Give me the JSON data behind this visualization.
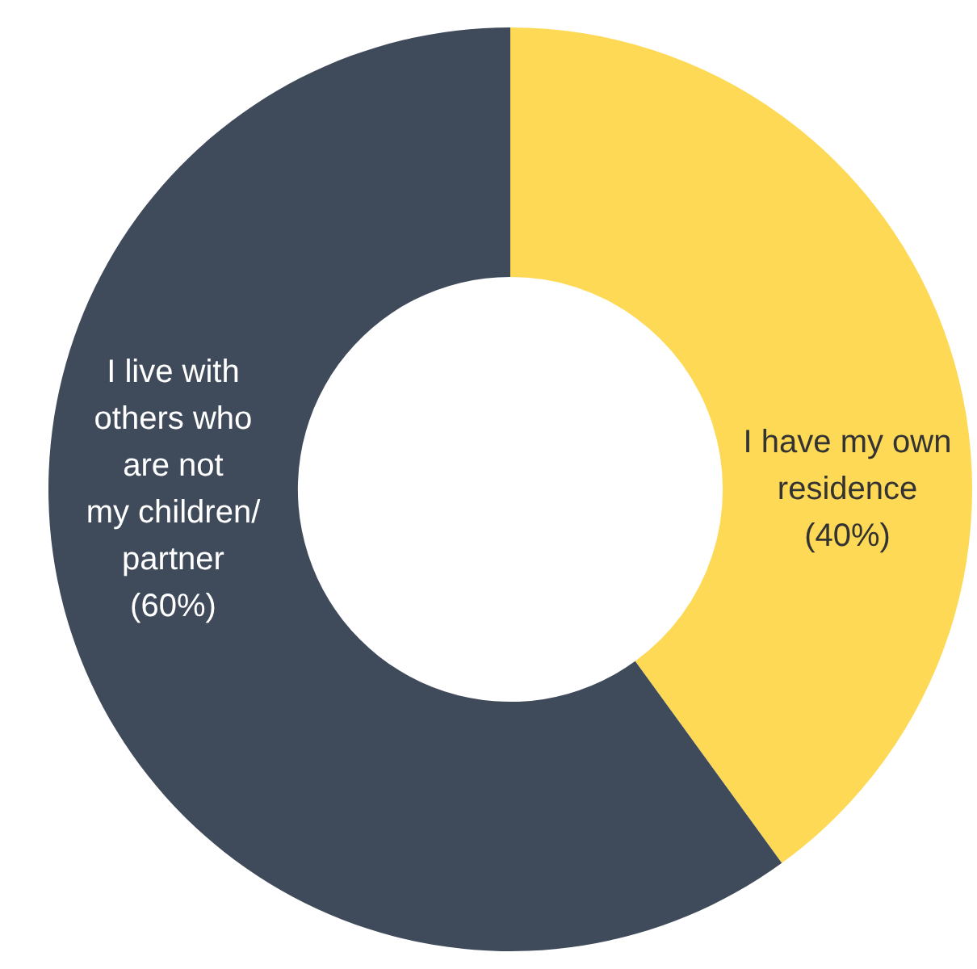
{
  "chart_data": {
    "type": "donut",
    "categories": [
      "I have my own\nresidence",
      "I live with\nothers who\nare not\nmy children/\npartner"
    ],
    "values": [
      40,
      60
    ],
    "colors": [
      "#fdd955",
      "#3f4a5a"
    ],
    "value_labels": [
      "(40%)",
      "(60%)"
    ]
  }
}
